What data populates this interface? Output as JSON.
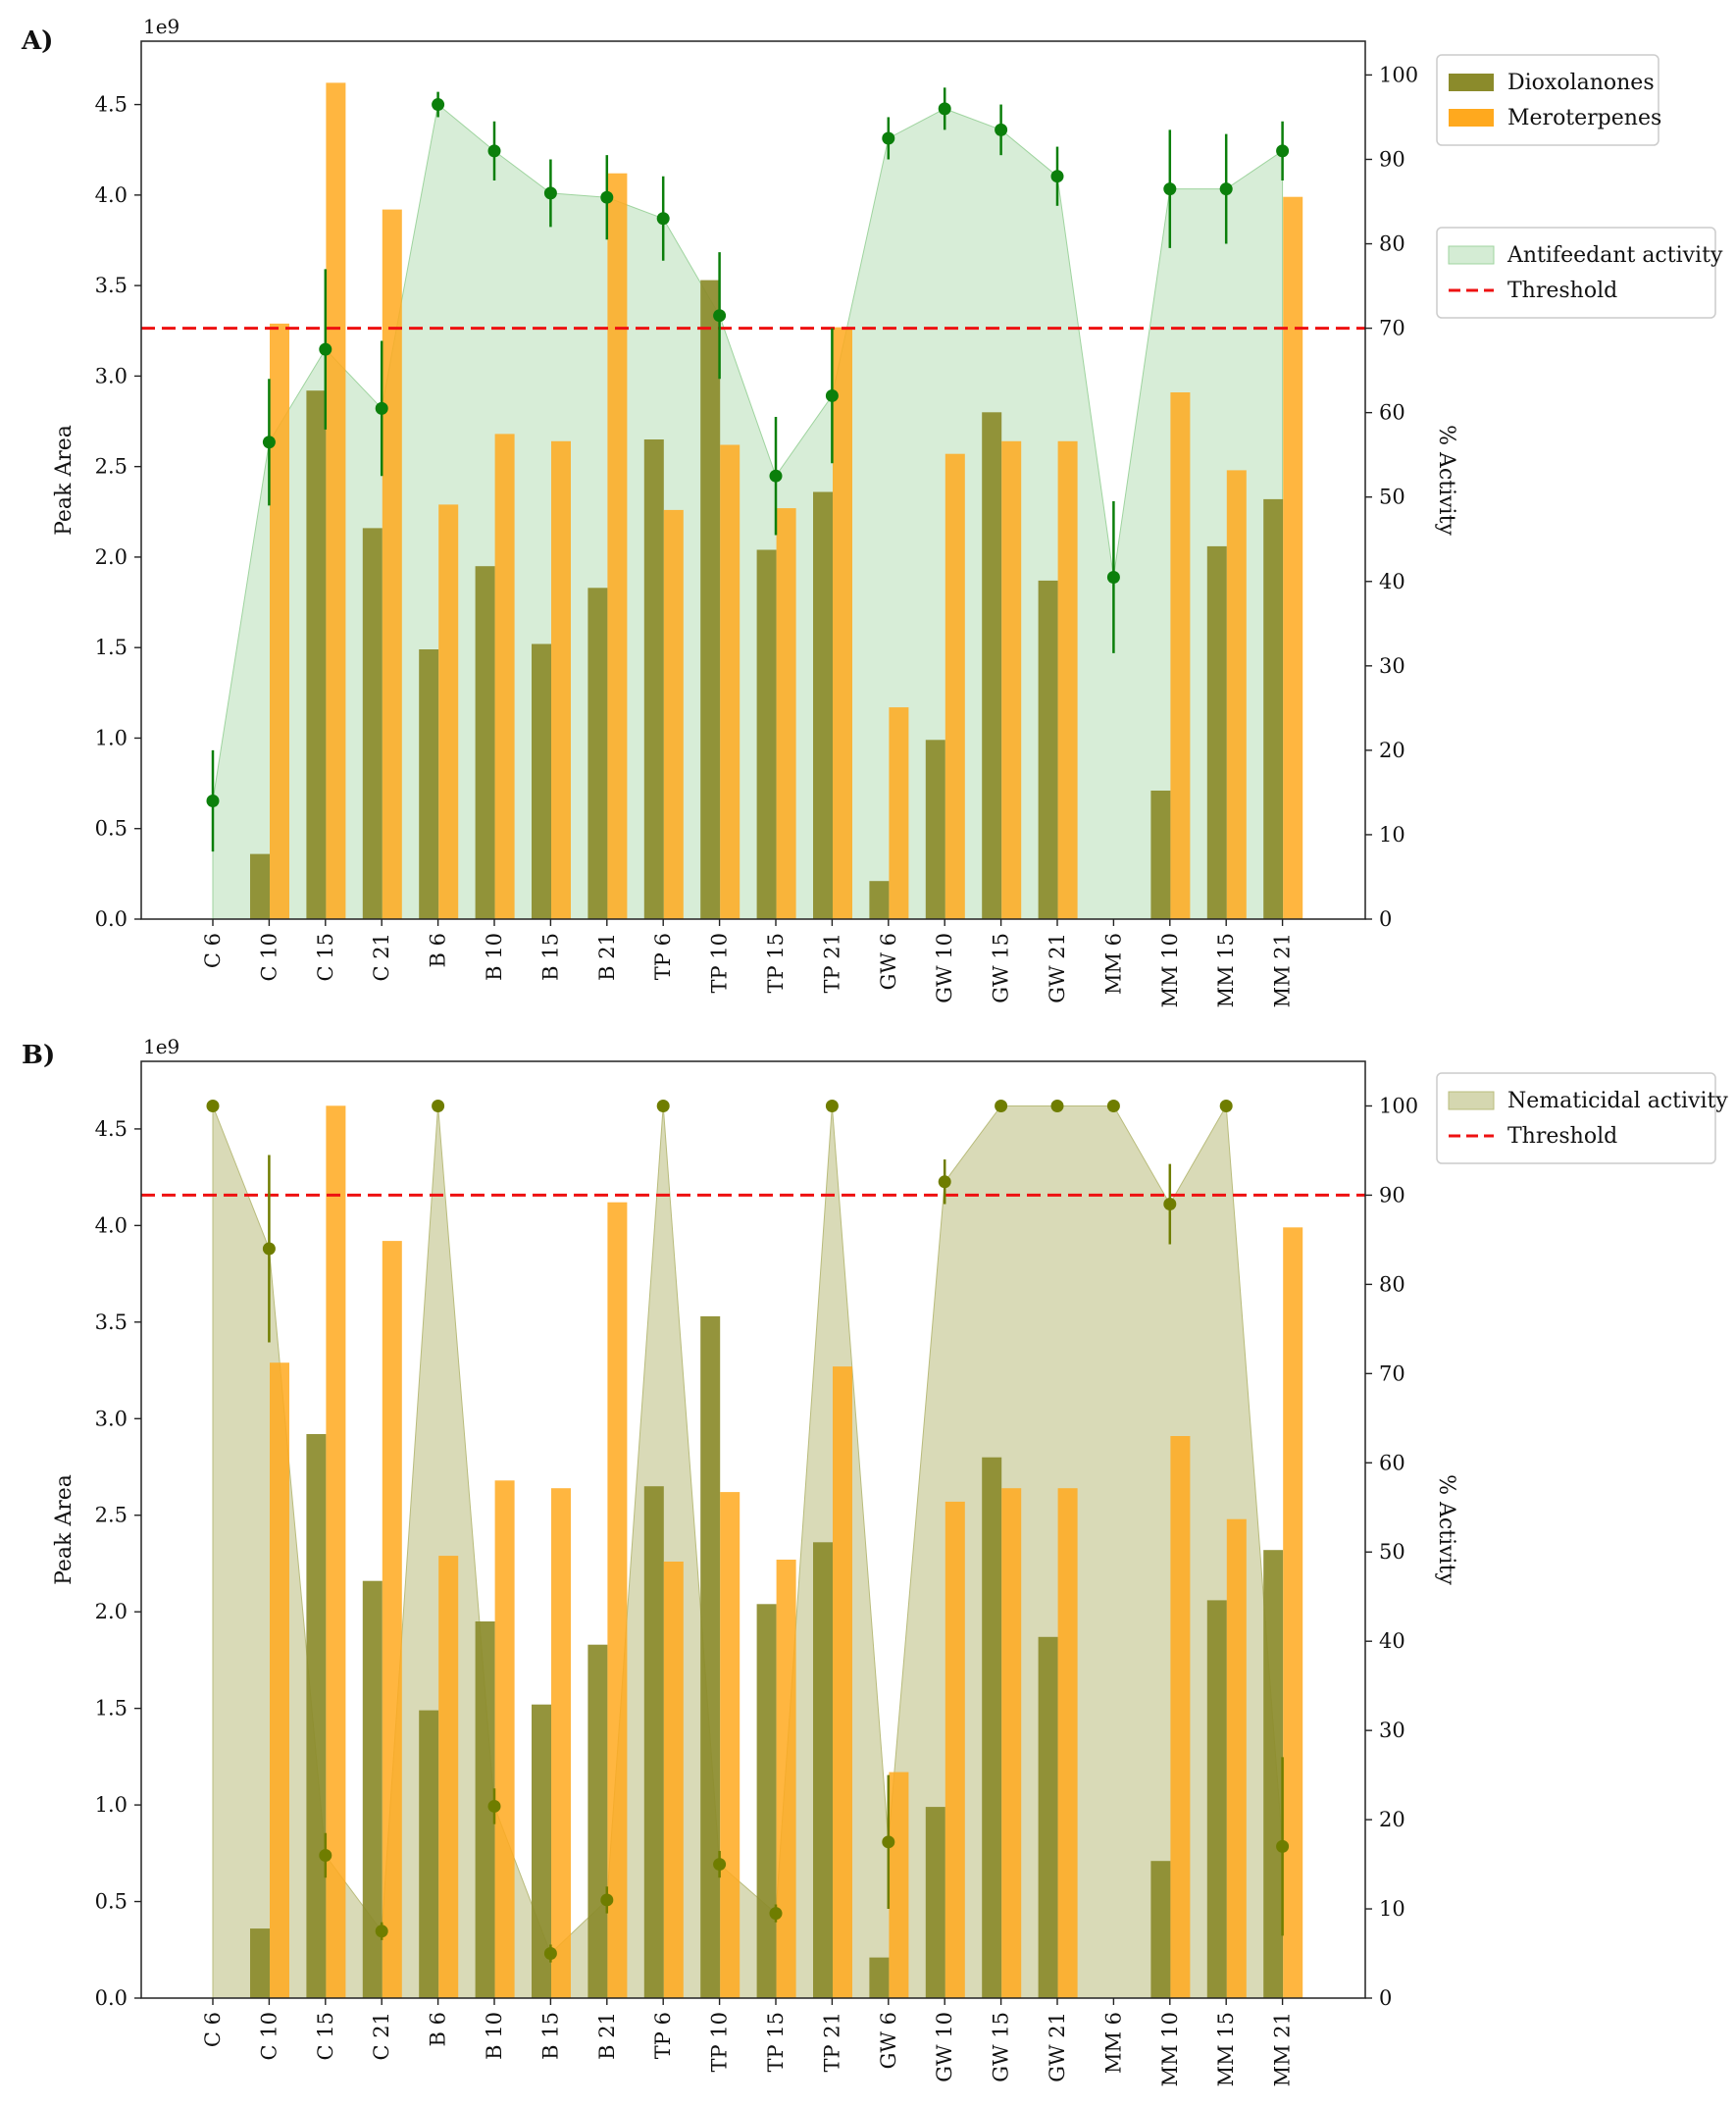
{
  "figure": {
    "panel_labels": [
      "A)",
      "B)"
    ]
  },
  "colors": {
    "dioxolanones": "#8b8b2b",
    "meroterpenes": "#ffa91e",
    "antifeedant": "#9fd49f",
    "antifeedant_marker": "#0b7f0b",
    "nematicidal": "#b9bc7c",
    "nematicidal_marker": "#6f7d00",
    "threshold": "#ee1111"
  },
  "chart_data": [
    {
      "panel": "A)",
      "type": "bar",
      "multiplier": "1e9",
      "ylabel": "Peak Area",
      "y2label": "% Activity",
      "ylim": [
        0,
        4.85
      ],
      "y2lim": [
        0,
        104
      ],
      "yticks": [
        "0.0",
        "0.5",
        "1.0",
        "1.5",
        "2.0",
        "2.5",
        "3.0",
        "3.5",
        "4.0",
        "4.5"
      ],
      "y2ticks": [
        "0",
        "10",
        "20",
        "30",
        "40",
        "50",
        "60",
        "70",
        "80",
        "90",
        "100"
      ],
      "categories": [
        "C 6",
        "C 10",
        "C 15",
        "C 21",
        "B 6",
        "B 10",
        "B 15",
        "B 21",
        "TP 6",
        "TP 10",
        "TP 15",
        "TP 21",
        "GW 6",
        "GW 10",
        "GW 15",
        "GW 21",
        "MM 6",
        "MM 10",
        "MM 15",
        "MM 21"
      ],
      "series": [
        {
          "name": "Dioxolanones",
          "values": [
            0,
            0.36,
            2.92,
            2.16,
            1.49,
            1.95,
            1.52,
            1.83,
            2.65,
            3.53,
            2.04,
            2.36,
            0.21,
            0.99,
            2.8,
            1.87,
            0,
            0.71,
            2.06,
            2.32
          ]
        },
        {
          "name": "Meroterpenes",
          "values": [
            0,
            3.29,
            4.62,
            3.92,
            2.29,
            2.68,
            2.64,
            4.12,
            2.26,
            2.62,
            2.27,
            3.27,
            1.17,
            2.57,
            2.64,
            2.64,
            0,
            2.91,
            2.48,
            3.99
          ]
        }
      ],
      "activity": {
        "name": "Antifeedant activity",
        "values": [
          14,
          56.5,
          67.5,
          60.5,
          96.5,
          91,
          86,
          85.5,
          83,
          71.5,
          52.5,
          62,
          92.5,
          96,
          93.5,
          88,
          40.5,
          86.5,
          86.5,
          91
        ],
        "errors": [
          6,
          7.5,
          9.5,
          8,
          1.5,
          3.5,
          4,
          5,
          5,
          7.5,
          7,
          8,
          2.5,
          2.5,
          3,
          3.5,
          9,
          7,
          6.5,
          3.5
        ]
      },
      "threshold": {
        "name": "Threshold",
        "value": 70
      },
      "legend": [
        {
          "label": "Dioxolanones",
          "kind": "bar"
        },
        {
          "label": "Meroterpenes",
          "kind": "bar"
        },
        {
          "label": "Antifeedant activity",
          "kind": "area"
        },
        {
          "label": "Threshold",
          "kind": "dashed"
        }
      ]
    },
    {
      "panel": "B)",
      "type": "bar",
      "multiplier": "1e9",
      "ylabel": "Peak Area",
      "y2label": "% Activity",
      "ylim": [
        0,
        4.85
      ],
      "y2lim": [
        0,
        105
      ],
      "yticks": [
        "0.0",
        "0.5",
        "1.0",
        "1.5",
        "2.0",
        "2.5",
        "3.0",
        "3.5",
        "4.0",
        "4.5"
      ],
      "y2ticks": [
        "0",
        "10",
        "20",
        "30",
        "40",
        "50",
        "60",
        "70",
        "80",
        "90",
        "100"
      ],
      "categories": [
        "C 6",
        "C 10",
        "C 15",
        "C 21",
        "B 6",
        "B 10",
        "B 15",
        "B 21",
        "TP 6",
        "TP 10",
        "TP 15",
        "TP 21",
        "GW 6",
        "GW 10",
        "GW 15",
        "GW 21",
        "MM 6",
        "MM 10",
        "MM 15",
        "MM 21"
      ],
      "series": [
        {
          "name": "Dioxolanones",
          "values": [
            0,
            0.36,
            2.92,
            2.16,
            1.49,
            1.95,
            1.52,
            1.83,
            2.65,
            3.53,
            2.04,
            2.36,
            0.21,
            0.99,
            2.8,
            1.87,
            0,
            0.71,
            2.06,
            2.32
          ]
        },
        {
          "name": "Meroterpenes",
          "values": [
            0,
            3.29,
            4.62,
            3.92,
            2.29,
            2.68,
            2.64,
            4.12,
            2.26,
            2.62,
            2.27,
            3.27,
            1.17,
            2.57,
            2.64,
            2.64,
            0,
            2.91,
            2.48,
            3.99
          ]
        }
      ],
      "activity": {
        "name": "Nematicidal activity",
        "values": [
          100,
          84,
          16,
          7.5,
          100,
          21.5,
          5,
          11,
          100,
          15,
          9.5,
          100,
          17.5,
          91.5,
          100,
          100,
          100,
          89,
          100,
          17
        ],
        "errors": [
          0,
          10.5,
          2.5,
          1,
          0,
          2,
          1,
          1.5,
          0,
          1.5,
          1,
          0,
          7.5,
          2.5,
          0,
          0,
          0,
          4.5,
          0,
          10
        ]
      },
      "threshold": {
        "name": "Threshold",
        "value": 90
      },
      "legend": [
        {
          "label": "Nematicidal activity",
          "kind": "area"
        },
        {
          "label": "Threshold",
          "kind": "dashed"
        }
      ]
    }
  ]
}
